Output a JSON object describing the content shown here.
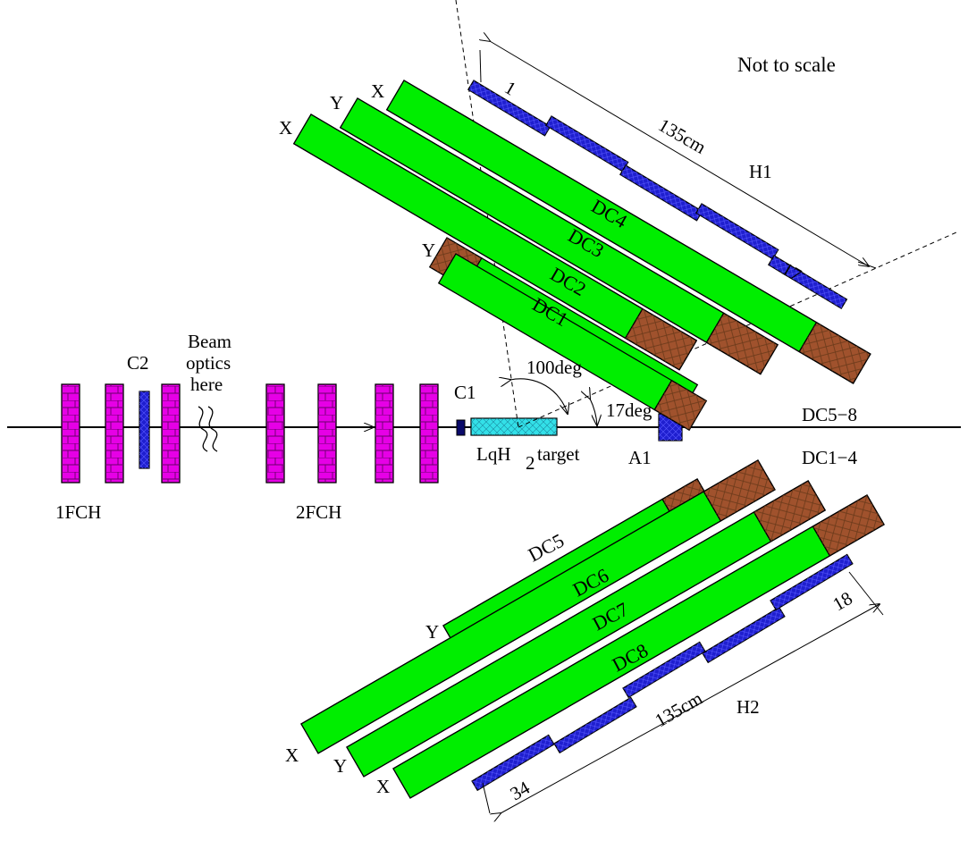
{
  "note": "Not to scale",
  "colors": {
    "chamber": "#00ee00",
    "chamber_end": "#a0522d",
    "hodoscope": "#1f1fcf",
    "fch": "#e600e6",
    "target": "#33e0e8",
    "counter": "#0a0a6a"
  },
  "upper_arm": {
    "chambers": [
      {
        "name": "DC1",
        "plane": ""
      },
      {
        "name": "DC2",
        "plane": "Y"
      },
      {
        "name": "DC3",
        "plane": "X"
      },
      {
        "name": "DC4",
        "plane": "Y"
      },
      {
        "name": "",
        "plane": "X"
      }
    ],
    "hodoscope": "H1",
    "first_element": "1",
    "last_element": "17",
    "length": "135cm"
  },
  "lower_arm": {
    "chambers": [
      {
        "name": "DC5",
        "plane": "Y"
      },
      {
        "name": "DC6",
        "plane": "X"
      },
      {
        "name": "DC7",
        "plane": "Y"
      },
      {
        "name": "DC8",
        "plane": "X"
      }
    ],
    "hodoscope": "H2",
    "first_element": "18",
    "last_element": "34",
    "length": "135cm"
  },
  "beamline": {
    "fch1": "1FCH",
    "fch2": "2FCH",
    "c2": "C2",
    "c1": "C1",
    "a1": "A1",
    "beam_optics": [
      "Beam",
      "optics",
      "here"
    ],
    "target_prefix": "LqH",
    "target_sub": "2",
    "target_suffix": "target"
  },
  "angles": {
    "wide": "100deg",
    "narrow": "17deg"
  },
  "side_labels": {
    "upper": "DC5−8",
    "lower": "DC1−4"
  }
}
